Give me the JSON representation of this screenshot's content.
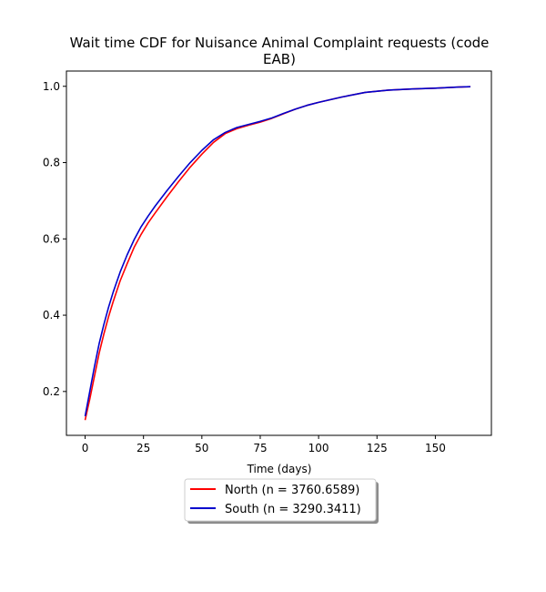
{
  "chart_data": {
    "type": "line",
    "title_lines": [
      "Wait time CDF for Nuisance Animal Complaint  requests (code",
      "EAB)"
    ],
    "xlabel": "Time (days)",
    "ylabel": "",
    "xlim": [
      -8,
      174
    ],
    "ylim": [
      0.085,
      1.04
    ],
    "xticks": [
      0,
      25,
      50,
      75,
      100,
      125,
      150
    ],
    "yticks": [
      0.2,
      0.4,
      0.6,
      0.8,
      1.0
    ],
    "ytick_labels": [
      "0.2",
      "0.4",
      "0.6",
      "0.8",
      "1.0"
    ],
    "grid": false,
    "legend_position": "below",
    "series": [
      {
        "name": "North (n = 3760.6589)",
        "color": "#ff0000",
        "x": [
          0,
          2,
          4,
          6,
          8,
          10,
          12,
          15,
          18,
          21,
          24,
          27,
          30,
          35,
          40,
          45,
          50,
          55,
          60,
          65,
          70,
          75,
          80,
          85,
          90,
          95,
          100,
          110,
          120,
          130,
          140,
          150,
          160,
          165
        ],
        "y": [
          0.125,
          0.18,
          0.24,
          0.3,
          0.35,
          0.395,
          0.435,
          0.49,
          0.535,
          0.578,
          0.612,
          0.642,
          0.668,
          0.71,
          0.75,
          0.788,
          0.822,
          0.853,
          0.876,
          0.889,
          0.898,
          0.906,
          0.916,
          0.928,
          0.94,
          0.95,
          0.958,
          0.972,
          0.984,
          0.99,
          0.993,
          0.995,
          0.998,
          0.999
        ]
      },
      {
        "name": "South (n = 3290.3411)",
        "color": "#0000cc",
        "x": [
          0,
          2,
          4,
          6,
          8,
          10,
          12,
          15,
          18,
          21,
          24,
          27,
          30,
          35,
          40,
          45,
          50,
          55,
          60,
          65,
          70,
          75,
          80,
          85,
          90,
          95,
          100,
          110,
          120,
          130,
          140,
          150,
          160,
          165
        ],
        "y": [
          0.135,
          0.2,
          0.265,
          0.325,
          0.375,
          0.42,
          0.46,
          0.513,
          0.558,
          0.598,
          0.632,
          0.66,
          0.686,
          0.726,
          0.764,
          0.8,
          0.832,
          0.86,
          0.879,
          0.892,
          0.9,
          0.908,
          0.917,
          0.929,
          0.94,
          0.95,
          0.958,
          0.972,
          0.984,
          0.99,
          0.993,
          0.995,
          0.998,
          0.999
        ]
      }
    ]
  }
}
